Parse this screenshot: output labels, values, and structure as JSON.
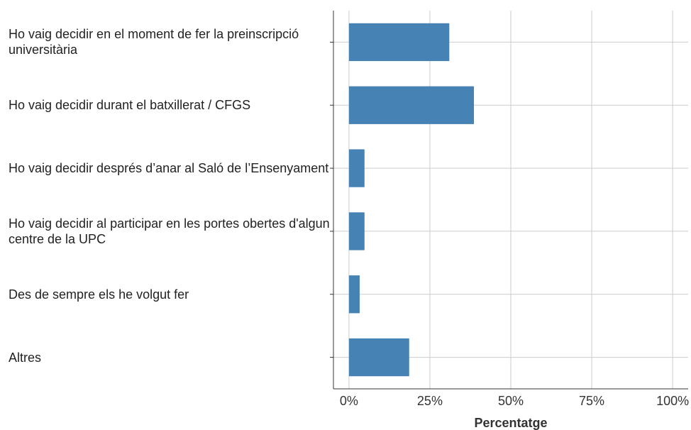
{
  "chart_data": {
    "type": "barh",
    "categories": [
      "Ho vaig decidir en el moment de fer la preinscripció universitària",
      "Ho vaig decidir durant el batxillerat / CFGS",
      "Ho vaig decidir després d’anar al Saló de l’Ensenyament",
      "Ho vaig decidir al participar en les portes obertes d'algun centre de la UPC",
      "Des de sempre els he volgut fer",
      "Altres"
    ],
    "values": [
      31,
      38.6,
      4.8,
      4.8,
      3.3,
      18.6
    ],
    "color": "#4682b4",
    "xlabel": "Percentatge",
    "xlim": [
      -4.8,
      104.8
    ],
    "xticks": [
      {
        "value": 0,
        "label": "0%"
      },
      {
        "value": 25,
        "label": "25%"
      },
      {
        "value": 50,
        "label": "50%"
      },
      {
        "value": 75,
        "label": "75%"
      },
      {
        "value": 100,
        "label": "100%"
      }
    ],
    "grid": true
  }
}
